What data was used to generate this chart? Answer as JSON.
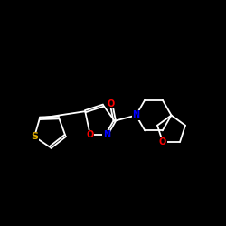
{
  "background_color": "#000000",
  "bond_color": "#ffffff",
  "atom_colors": {
    "O": "#ff0000",
    "N": "#0000ff",
    "S": "#ddaa00",
    "C": "#ffffff"
  },
  "font_size": 7,
  "line_width": 1.3,
  "figsize": [
    2.5,
    2.5
  ],
  "dpi": 100
}
